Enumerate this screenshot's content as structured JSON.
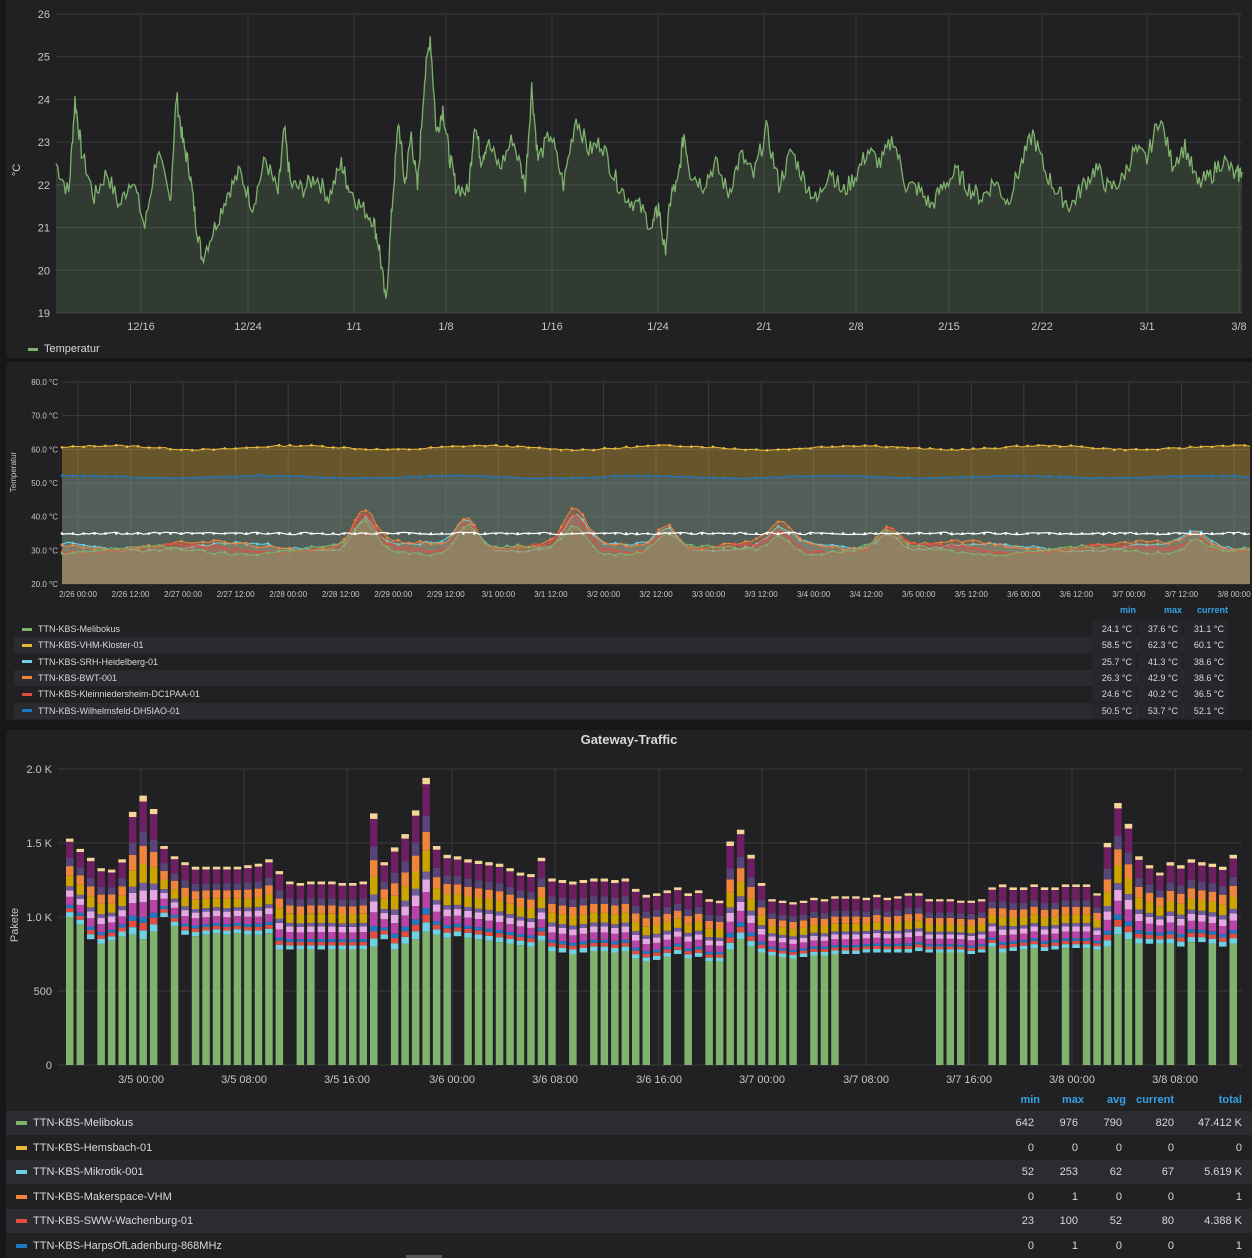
{
  "colors": {
    "grid": "#3a3b3e",
    "text": "#c7c7c9",
    "axis": "#c7c7c9"
  },
  "temp_panel": {
    "legend": [
      {
        "label": "Temperatur",
        "color": "#7eb26d"
      }
    ]
  },
  "gateway_temp_panel": {
    "legend_header": {
      "min": "min",
      "max": "max",
      "current": "current"
    },
    "legend": [
      {
        "label": "TTN-KBS-Melibokus",
        "color": "#7eb26d",
        "min": "24.1 °C",
        "max": "37.6 °C",
        "current": "31.1 °C"
      },
      {
        "label": "TTN-KBS-VHM-Kloster-01",
        "color": "#eab839",
        "min": "58.5 °C",
        "max": "62.3 °C",
        "current": "60.1 °C"
      },
      {
        "label": "TTN-KBS-SRH-Heidelberg-01",
        "color": "#6ed0e0",
        "min": "25.7 °C",
        "max": "41.3 °C",
        "current": "38.6 °C"
      },
      {
        "label": "TTN-KBS-BWT-001",
        "color": "#ef843c",
        "min": "26.3 °C",
        "max": "42.9 °C",
        "current": "38.6 °C"
      },
      {
        "label": "TTN-KBS-Kleinniedersheim-DC1PAA-01",
        "color": "#e24d42",
        "min": "24.6 °C",
        "max": "40.2 °C",
        "current": "36.5 °C"
      },
      {
        "label": "TTN-KBS-Wilhelmsfeld-DH5IAO-01",
        "color": "#1f78c1",
        "min": "50.5 °C",
        "max": "53.7 °C",
        "current": "52.1 °C"
      }
    ]
  },
  "traffic_panel": {
    "title": "Gateway-Traffic",
    "legend_header": {
      "min": "min",
      "max": "max",
      "avg": "avg",
      "current": "current",
      "total": "total"
    },
    "legend": [
      {
        "label": "TTN-KBS-Melibokus",
        "color": "#7eb26d",
        "min": "642",
        "max": "976",
        "avg": "790",
        "current": "820",
        "total": "47.412 K"
      },
      {
        "label": "TTN-KBS-Hemsbach-01",
        "color": "#eab839",
        "min": "0",
        "max": "0",
        "avg": "0",
        "current": "0",
        "total": "0"
      },
      {
        "label": "TTN-KBS-Mikrotik-001",
        "color": "#6ed0e0",
        "min": "52",
        "max": "253",
        "avg": "62",
        "current": "67",
        "total": "5.619 K"
      },
      {
        "label": "TTN-KBS-Makerspace-VHM",
        "color": "#ef843c",
        "min": "0",
        "max": "1",
        "avg": "0",
        "current": "0",
        "total": "1"
      },
      {
        "label": "TTN-KBS-SWW-Wachenburg-01",
        "color": "#e24d42",
        "min": "23",
        "max": "100",
        "avg": "52",
        "current": "80",
        "total": "4.388 K"
      },
      {
        "label": "TTN-KBS-HarpsOfLadenburg-868MHz",
        "color": "#1f78c1",
        "min": "0",
        "max": "1",
        "avg": "0",
        "current": "0",
        "total": "1"
      }
    ]
  },
  "chart_data": [
    {
      "type": "area",
      "title": "",
      "xlabel": "",
      "ylabel": "°C",
      "ylim": [
        19,
        26
      ],
      "yticks": [
        "19",
        "20",
        "21",
        "22",
        "23",
        "24",
        "25",
        "26"
      ],
      "xtick_labels": [
        "12/16",
        "12/24",
        "1/1",
        "1/8",
        "1/16",
        "1/24",
        "2/1",
        "2/8",
        "2/15",
        "2/22",
        "3/1",
        "3/8"
      ],
      "x_range": [
        "12/10",
        "3/8"
      ],
      "grid": true,
      "legend_position": "bottom-left",
      "series": [
        {
          "name": "Temperatur",
          "color": "#7eb26d",
          "points": [
            [
              0,
              22.5
            ],
            [
              2,
              21.8
            ],
            [
              3,
              24.0
            ],
            [
              4,
              22.8
            ],
            [
              6,
              21.7
            ],
            [
              8,
              22.3
            ],
            [
              10,
              21.5
            ],
            [
              12,
              22.2
            ],
            [
              14,
              21.0
            ],
            [
              16,
              22.8
            ],
            [
              18,
              21.6
            ],
            [
              19,
              24.1
            ],
            [
              20,
              23.0
            ],
            [
              21,
              22.4
            ],
            [
              22,
              21.2
            ],
            [
              23,
              20.3
            ],
            [
              25,
              21.0
            ],
            [
              27,
              21.8
            ],
            [
              29,
              22.3
            ],
            [
              31,
              21.5
            ],
            [
              33,
              22.6
            ],
            [
              35,
              21.8
            ],
            [
              36,
              23.3
            ],
            [
              37,
              22.0
            ],
            [
              39,
              21.9
            ],
            [
              41,
              22.2
            ],
            [
              43,
              21.7
            ],
            [
              45,
              22.5
            ],
            [
              46,
              22.0
            ],
            [
              48,
              21.5
            ],
            [
              50,
              21.2
            ],
            [
              51,
              20.5
            ],
            [
              52,
              19.2
            ],
            [
              53,
              21.5
            ],
            [
              54,
              23.5
            ],
            [
              55,
              22.0
            ],
            [
              56,
              23.2
            ],
            [
              57,
              21.9
            ],
            [
              58,
              24.3
            ],
            [
              59,
              25.5
            ],
            [
              60,
              23.2
            ],
            [
              61,
              23.8
            ],
            [
              62,
              22.7
            ],
            [
              63,
              22.0
            ],
            [
              65,
              21.8
            ],
            [
              66,
              23.5
            ],
            [
              67,
              22.6
            ],
            [
              68,
              23.0
            ],
            [
              70,
              22.4
            ],
            [
              72,
              23.1
            ],
            [
              74,
              22.0
            ],
            [
              75,
              24.3
            ],
            [
              76,
              22.6
            ],
            [
              78,
              23.2
            ],
            [
              80,
              22.0
            ],
            [
              82,
              23.6
            ],
            [
              84,
              22.8
            ],
            [
              86,
              23.0
            ],
            [
              88,
              22.2
            ],
            [
              90,
              21.7
            ],
            [
              92,
              21.5
            ],
            [
              94,
              21.0
            ],
            [
              95,
              21.5
            ],
            [
              96,
              20.4
            ],
            [
              97,
              21.8
            ],
            [
              98,
              22.0
            ],
            [
              99,
              23.2
            ],
            [
              100,
              22.3
            ],
            [
              102,
              22.0
            ],
            [
              104,
              22.5
            ],
            [
              106,
              21.8
            ],
            [
              108,
              22.7
            ],
            [
              110,
              22.2
            ],
            [
              112,
              23.3
            ],
            [
              114,
              22.0
            ],
            [
              116,
              22.8
            ],
            [
              118,
              22.1
            ],
            [
              120,
              21.6
            ],
            [
              122,
              22.4
            ],
            [
              124,
              21.8
            ],
            [
              126,
              22.2
            ],
            [
              128,
              22.8
            ],
            [
              130,
              22.5
            ],
            [
              132,
              23.1
            ],
            [
              134,
              22.0
            ],
            [
              136,
              21.9
            ],
            [
              138,
              21.5
            ],
            [
              140,
              22.0
            ],
            [
              142,
              22.3
            ],
            [
              144,
              21.9
            ],
            [
              146,
              21.7
            ],
            [
              148,
              22.1
            ],
            [
              150,
              21.6
            ],
            [
              152,
              22.4
            ],
            [
              154,
              23.2
            ],
            [
              156,
              22.3
            ],
            [
              158,
              21.8
            ],
            [
              160,
              21.5
            ],
            [
              162,
              22.0
            ],
            [
              164,
              22.4
            ],
            [
              166,
              21.9
            ],
            [
              168,
              22.1
            ],
            [
              170,
              22.8
            ],
            [
              172,
              22.6
            ],
            [
              174,
              23.6
            ],
            [
              176,
              22.5
            ],
            [
              178,
              22.9
            ],
            [
              180,
              22.0
            ],
            [
              182,
              22.2
            ],
            [
              184,
              22.6
            ],
            [
              186,
              22.2
            ],
            [
              187,
              22.3
            ]
          ]
        }
      ]
    },
    {
      "type": "area",
      "title": "",
      "xlabel": "",
      "ylabel": "Temperatur",
      "ylim": [
        20,
        80
      ],
      "yticks": [
        "20.0 °C",
        "30.0 °C",
        "40.0 °C",
        "50.0 °C",
        "60.0 °C",
        "70.0 °C",
        "80.0 °C"
      ],
      "xtick_labels": [
        "2/26 00:00",
        "2/26 12:00",
        "2/27 00:00",
        "2/27 12:00",
        "2/28 00:00",
        "2/28 12:00",
        "2/29 00:00",
        "2/29 12:00",
        "3/1 00:00",
        "3/1 12:00",
        "3/2 00:00",
        "3/2 12:00",
        "3/3 00:00",
        "3/3 12:00",
        "3/4 00:00",
        "3/4 12:00",
        "3/5 00:00",
        "3/5 12:00",
        "3/6 00:00",
        "3/6 12:00",
        "3/7 00:00",
        "3/7 12:00",
        "3/8 00:00"
      ],
      "grid": true,
      "legend_position": "bottom",
      "series": [
        {
          "name": "TTN-KBS-VHM-Kloster-01",
          "color": "#eab839",
          "base": 60.5,
          "var": 1.0,
          "spikes": []
        },
        {
          "name": "TTN-KBS-Wilhelmsfeld-DH5IAO-01",
          "color": "#1f78c1",
          "base": 51.8,
          "var": 0.6,
          "spikes": []
        },
        {
          "name": "TTN-KBS-SRH-Heidelberg-01",
          "color": "#6ed0e0",
          "base": 31.0,
          "var": 2.0,
          "spikes": [
            [
              5.6,
              9
            ],
            [
              7.5,
              8
            ],
            [
              9.5,
              9
            ],
            [
              11.2,
              6
            ],
            [
              13.3,
              5
            ],
            [
              15.3,
              5
            ],
            [
              21.0,
              4
            ]
          ]
        },
        {
          "name": "TTN-KBS-BWT-001",
          "color": "#ef843c",
          "base": 31.5,
          "var": 2.0,
          "spikes": [
            [
              5.6,
              10
            ],
            [
              7.5,
              9
            ],
            [
              9.5,
              10
            ],
            [
              11.2,
              7
            ],
            [
              13.3,
              6
            ],
            [
              15.3,
              6
            ],
            [
              21.0,
              4
            ]
          ]
        },
        {
          "name": "TTN-KBS-Kleinniedersheim-DC1PAA-01",
          "color": "#e24d42",
          "base": 30.5,
          "var": 2.0,
          "spikes": [
            [
              5.6,
              9
            ],
            [
              7.5,
              9
            ],
            [
              9.5,
              9
            ],
            [
              11.2,
              6
            ],
            [
              13.3,
              5
            ],
            [
              15.3,
              6
            ],
            [
              21.0,
              4
            ]
          ]
        },
        {
          "name": "TTN-KBS-Melibokus",
          "color": "#7eb26d",
          "base": 30.0,
          "var": 2.0,
          "spikes": [
            [
              5.6,
              8
            ],
            [
              7.5,
              8
            ],
            [
              9.5,
              8
            ],
            [
              11.2,
              5
            ],
            [
              13.3,
              5
            ],
            [
              15.3,
              5
            ],
            [
              21.0,
              4
            ]
          ]
        }
      ]
    },
    {
      "type": "bar",
      "title": "Gateway-Traffic",
      "xlabel": "",
      "ylabel": "Pakete",
      "ylim": [
        0,
        2000
      ],
      "yticks": [
        "0",
        "500",
        "1.0 K",
        "1.5 K",
        "2.0 K"
      ],
      "xtick_labels": [
        "3/5 00:00",
        "3/5 08:00",
        "3/5 16:00",
        "3/6 00:00",
        "3/6 08:00",
        "3/6 16:00",
        "3/7 00:00",
        "3/7 08:00",
        "3/7 16:00",
        "3/8 00:00",
        "3/8 08:00"
      ],
      "grid": true,
      "legend_position": "bottom",
      "stack_colors": [
        "#7eb26d",
        "#6ed0e0",
        "#e24d42",
        "#1f78c1",
        "#ba43a9",
        "#e5a8e2",
        "#705da0",
        "#cca300",
        "#ef843c",
        "#584477",
        "#6d1f62",
        "#f4d598"
      ],
      "totals": [
        1530,
        1460,
        1400,
        1330,
        1320,
        1390,
        1710,
        1820,
        1730,
        1480,
        1410,
        1370,
        1340,
        1340,
        1340,
        1340,
        1340,
        1350,
        1360,
        1390,
        1310,
        1240,
        1230,
        1240,
        1240,
        1240,
        1230,
        1230,
        1240,
        1700,
        1370,
        1470,
        1560,
        1720,
        1940,
        1480,
        1420,
        1410,
        1390,
        1380,
        1370,
        1360,
        1330,
        1300,
        1290,
        1400,
        1260,
        1250,
        1240,
        1250,
        1260,
        1260,
        1250,
        1260,
        1190,
        1150,
        1160,
        1180,
        1200,
        1160,
        1180,
        1120,
        1110,
        1510,
        1590,
        1420,
        1230,
        1120,
        1110,
        1100,
        1110,
        1130,
        1120,
        1140,
        1140,
        1140,
        1130,
        1150,
        1130,
        1140,
        1160,
        1160,
        1120,
        1120,
        1120,
        1110,
        1110,
        1120,
        1200,
        1220,
        1200,
        1200,
        1220,
        1200,
        1200,
        1220,
        1220,
        1220,
        1160,
        1500,
        1770,
        1630,
        1410,
        1350,
        1300,
        1370,
        1350,
        1390,
        1370,
        1360,
        1340,
        1420
      ],
      "melibokus": [
        1000,
        950,
        850,
        820,
        840,
        870,
        880,
        850,
        900,
        1000,
        940,
        880,
        870,
        880,
        890,
        880,
        890,
        880,
        880,
        890,
        780,
        780,
        780,
        780,
        780,
        780,
        780,
        780,
        780,
        800,
        850,
        780,
        820,
        850,
        900,
        880,
        860,
        870,
        860,
        850,
        840,
        830,
        820,
        810,
        800,
        840,
        770,
        760,
        750,
        760,
        770,
        770,
        760,
        770,
        720,
        700,
        710,
        730,
        750,
        720,
        730,
        700,
        700,
        780,
        850,
        800,
        760,
        740,
        730,
        720,
        730,
        740,
        740,
        750,
        750,
        750,
        760,
        760,
        760,
        760,
        760,
        770,
        760,
        760,
        760,
        760,
        750,
        760,
        800,
        760,
        770,
        780,
        790,
        770,
        780,
        790,
        790,
        790,
        780,
        800,
        880,
        850,
        820,
        820,
        820,
        820,
        800,
        830,
        830,
        820,
        800,
        820
      ],
      "gaps": [
        2,
        9,
        11,
        21,
        24,
        30,
        37,
        47,
        49,
        56,
        58,
        60,
        70,
        74,
        75,
        76,
        77,
        78,
        79,
        80,
        81,
        82,
        86,
        87,
        90,
        93,
        94,
        96,
        103,
        106,
        108,
        110,
        112
      ]
    }
  ]
}
